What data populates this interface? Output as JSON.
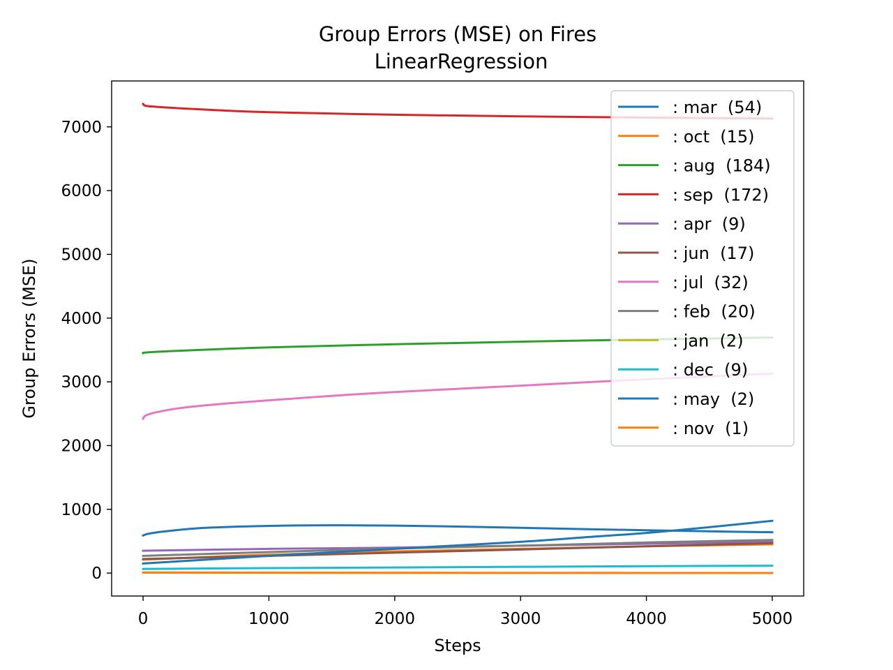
{
  "chart_data": {
    "type": "line",
    "title": "Group Errors (MSE) on Fires",
    "subtitle": "LinearRegression",
    "xlabel": "Steps",
    "ylabel": "Group Errors (MSE)",
    "xlim": [
      -250,
      5250
    ],
    "ylim": [
      -360,
      7720
    ],
    "xticks": [
      0,
      1000,
      2000,
      3000,
      4000,
      5000
    ],
    "yticks": [
      0,
      1000,
      2000,
      3000,
      4000,
      5000,
      6000,
      7000
    ],
    "grid": false,
    "legend_position": "top-right",
    "series": [
      {
        "name": ": mar  (54)",
        "color": "#1f77b4",
        "x": [
          0,
          50,
          200,
          500,
          1000,
          1500,
          2000,
          2500,
          3000,
          3500,
          4000,
          4500,
          5000
        ],
        "values": [
          590,
          620,
          660,
          710,
          740,
          750,
          745,
          730,
          710,
          690,
          672,
          655,
          640
        ]
      },
      {
        "name": ": oct  (15)",
        "color": "#ff7f0e",
        "x": [
          0,
          1000,
          2000,
          3000,
          4000,
          5000
        ],
        "values": [
          210,
          290,
          340,
          380,
          420,
          450
        ]
      },
      {
        "name": ": aug  (184)",
        "color": "#2ca02c",
        "x": [
          0,
          20,
          200,
          500,
          1000,
          2000,
          3000,
          4000,
          5000
        ],
        "values": [
          3450,
          3460,
          3480,
          3505,
          3540,
          3590,
          3630,
          3665,
          3695
        ]
      },
      {
        "name": ": sep  (172)",
        "color": "#d62728",
        "x": [
          0,
          20,
          100,
          300,
          600,
          1000,
          2000,
          3000,
          4000,
          5000
        ],
        "values": [
          7360,
          7330,
          7315,
          7290,
          7260,
          7230,
          7190,
          7165,
          7145,
          7130
        ]
      },
      {
        "name": ": apr  (9)",
        "color": "#9467bd",
        "x": [
          0,
          1000,
          2000,
          3000,
          4000,
          5000
        ],
        "values": [
          350,
          380,
          400,
          430,
          460,
          490
        ]
      },
      {
        "name": ": jun  (17)",
        "color": "#8c564b",
        "x": [
          0,
          1000,
          2000,
          3000,
          4000,
          5000
        ],
        "values": [
          220,
          270,
          320,
          370,
          420,
          470
        ]
      },
      {
        "name": ": jul  (32)",
        "color": "#e377c2",
        "x": [
          0,
          20,
          100,
          300,
          600,
          1000,
          1500,
          2000,
          3000,
          4000,
          5000
        ],
        "values": [
          2420,
          2470,
          2520,
          2590,
          2650,
          2710,
          2780,
          2840,
          2940,
          3040,
          3130
        ]
      },
      {
        "name": ": feb  (20)",
        "color": "#7f7f7f",
        "x": [
          0,
          1000,
          2000,
          3000,
          4000,
          5000
        ],
        "values": [
          270,
          330,
          385,
          430,
          480,
          520
        ]
      },
      {
        "name": ": jan  (2)",
        "color": "#bcbd22",
        "x": [
          0,
          1000,
          2000,
          3000,
          4000,
          5000
        ],
        "values": [
          5,
          4,
          3,
          2,
          2,
          1
        ]
      },
      {
        "name": ": dec  (9)",
        "color": "#17becf",
        "x": [
          0,
          1000,
          2000,
          3000,
          4000,
          5000
        ],
        "values": [
          65,
          78,
          88,
          98,
          108,
          115
        ]
      },
      {
        "name": ": may  (2)",
        "color": "#1f77b4",
        "x": [
          0,
          1000,
          2000,
          3000,
          3500,
          4000,
          4500,
          5000
        ],
        "values": [
          150,
          270,
          380,
          490,
          560,
          630,
          720,
          820
        ]
      },
      {
        "name": ": nov  (1)",
        "color": "#ff7f0e",
        "x": [
          0,
          1000,
          2000,
          3000,
          4000,
          5000
        ],
        "values": [
          10,
          6,
          4,
          3,
          2,
          1
        ]
      }
    ]
  }
}
